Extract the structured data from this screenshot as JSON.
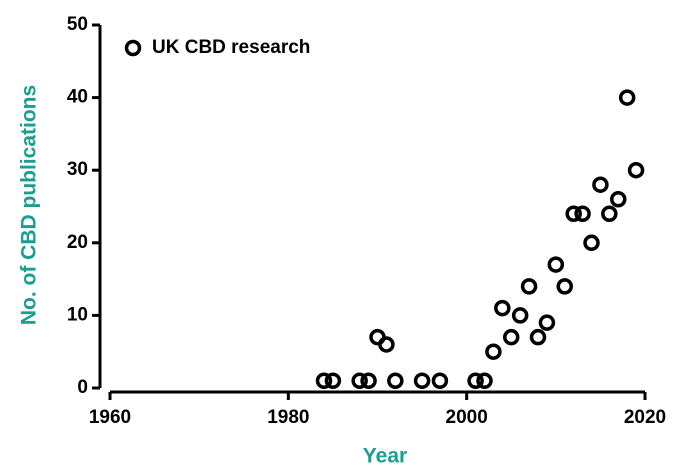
{
  "chart_data": {
    "type": "scatter",
    "xlabel": "Year",
    "ylabel": "No. of CBD publications",
    "series": [
      {
        "name": "UK CBD research",
        "color": "#000000",
        "x": [
          1984,
          1985,
          1988,
          1989,
          1990,
          1991,
          1992,
          1995,
          1997,
          2001,
          2002,
          2003,
          2004,
          2005,
          2006,
          2007,
          2008,
          2009,
          2010,
          2011,
          2012,
          2013,
          2014,
          2015,
          2016,
          2017,
          2018,
          2019
        ],
        "values": [
          1,
          1,
          1,
          1,
          7,
          6,
          1,
          1,
          1,
          1,
          1,
          5,
          11,
          7,
          10,
          14,
          7,
          9,
          17,
          14,
          24,
          24,
          20,
          28,
          24,
          26,
          40,
          30
        ]
      }
    ],
    "xlim": [
      1960,
      2020
    ],
    "xticks": [
      1960,
      1980,
      2000,
      2020
    ],
    "ylim": [
      0,
      50
    ],
    "yticks": [
      0,
      10,
      20,
      30,
      40,
      50
    ],
    "legend": "upper left"
  }
}
